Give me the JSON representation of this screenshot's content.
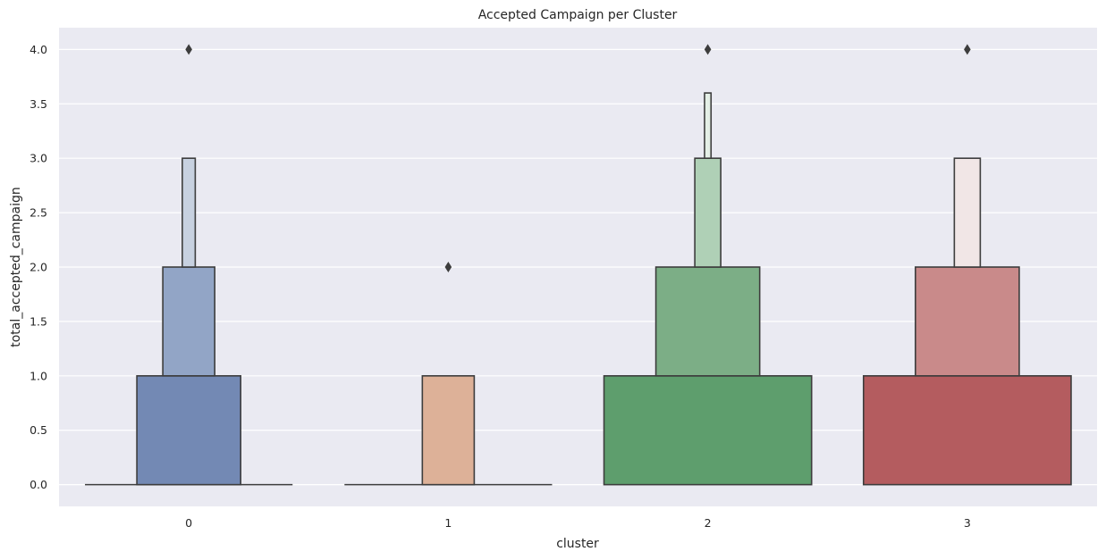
{
  "chart_data": {
    "type": "boxen",
    "title": "Accepted Campaign per Cluster",
    "xlabel": "cluster",
    "ylabel": "total_accepted_campaign",
    "categories": [
      "0",
      "1",
      "2",
      "3"
    ],
    "ylim": [
      -0.2,
      4.2
    ],
    "yticks": [
      "0.0",
      "0.5",
      "1.0",
      "1.5",
      "2.0",
      "2.5",
      "3.0",
      "3.5",
      "4.0"
    ],
    "grid": true,
    "background": "#eaeaf2",
    "series": [
      {
        "category": "0",
        "levels": [
          {
            "low": 0,
            "high": 0,
            "width_fraction": 0.8,
            "color": "#7389b4"
          },
          {
            "low": 0,
            "high": 1,
            "width_fraction": 0.4,
            "color": "#7389b4"
          },
          {
            "low": 1,
            "high": 2,
            "width_fraction": 0.2,
            "color": "#92a5c6"
          },
          {
            "low": 2,
            "high": 3,
            "width_fraction": 0.05,
            "color": "#c7d1e0"
          }
        ],
        "outliers": [
          4
        ]
      },
      {
        "category": "1",
        "levels": [
          {
            "low": 0,
            "high": 0,
            "width_fraction": 0.8,
            "color": "#ddae94"
          },
          {
            "low": 0,
            "high": 1,
            "width_fraction": 0.2,
            "color": "#ddb198"
          }
        ],
        "outliers": [
          2
        ]
      },
      {
        "category": "2",
        "levels": [
          {
            "low": 0,
            "high": 1,
            "width_fraction": 0.8,
            "color": "#5e9e6d"
          },
          {
            "low": 1,
            "high": 2,
            "width_fraction": 0.4,
            "color": "#7cae86"
          },
          {
            "low": 2,
            "high": 3,
            "width_fraction": 0.1,
            "color": "#afd0b6"
          },
          {
            "low": 3,
            "high": 3.6,
            "width_fraction": 0.025,
            "color": "#e4efe6"
          }
        ],
        "outliers": [
          4
        ]
      },
      {
        "category": "3",
        "levels": [
          {
            "low": 0,
            "high": 1,
            "width_fraction": 0.8,
            "color": "#b45c5f"
          },
          {
            "low": 1,
            "high": 2,
            "width_fraction": 0.4,
            "color": "#c98a8a"
          },
          {
            "low": 2,
            "high": 3,
            "width_fraction": 0.1,
            "color": "#f1e6e6"
          }
        ],
        "outliers": [
          4
        ]
      }
    ]
  }
}
